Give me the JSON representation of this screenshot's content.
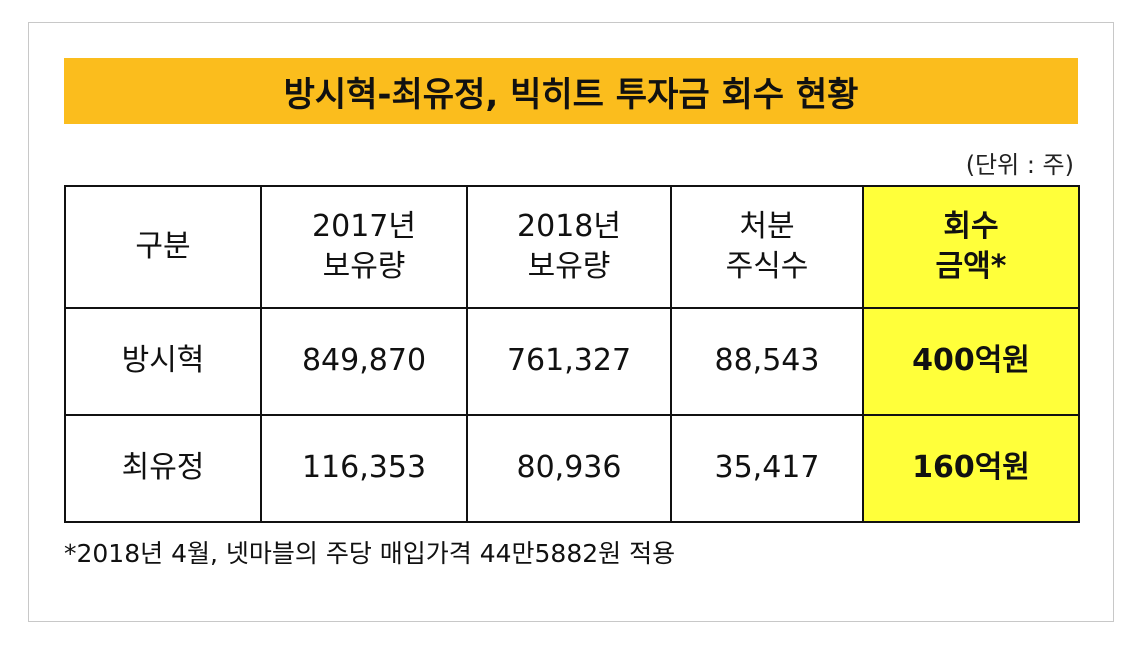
{
  "title": "방시혁-최유정, 빅히트 투자금 회수 현황",
  "unit_note": "(단위 : 주)",
  "table": {
    "headers": [
      {
        "line1": "구분",
        "line2": ""
      },
      {
        "line1": "2017년",
        "line2": "보유량"
      },
      {
        "line1": "2018년",
        "line2": "보유량"
      },
      {
        "line1": "처분",
        "line2": "주식수"
      },
      {
        "line1": "회수",
        "line2": "금액*"
      }
    ],
    "rows": [
      {
        "name": "방시혁",
        "y2017": "849,870",
        "y2018": "761,327",
        "sold": "88,543",
        "amount": "400억원"
      },
      {
        "name": "최유정",
        "y2017": "116,353",
        "y2018": "80,936",
        "sold": "35,417",
        "amount": "160억원"
      }
    ]
  },
  "footnote": "*2018년 4월, 넷마블의 주당 매입가격 44만5882원 적용",
  "colors": {
    "title_bg": "#fbbd1d",
    "highlight_bg": "#ffff3a",
    "border": "#111111"
  }
}
